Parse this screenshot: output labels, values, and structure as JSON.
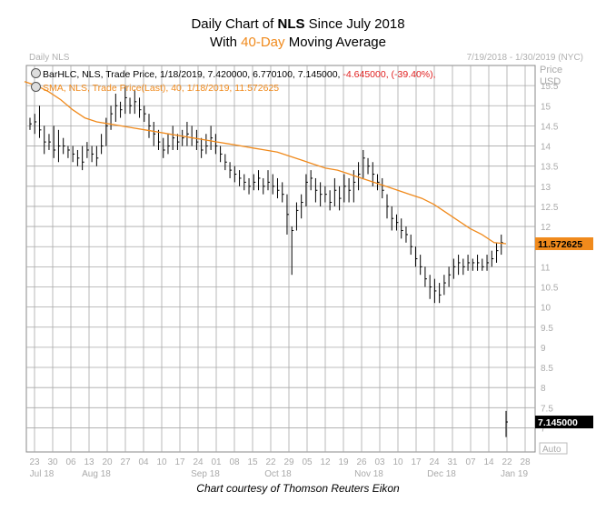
{
  "title": {
    "line1_prefix": "Daily Chart of ",
    "line1_ticker": "NLS",
    "line1_suffix": " Since July 2018",
    "line2_prefix": "With ",
    "line2_highlight": "40-Day",
    "line2_suffix": " Moving Average"
  },
  "chart_label": "Daily NLS",
  "date_range": "7/19/2018 - 1/30/2019 (NYC)",
  "legend": {
    "bar_text": "BarHLC, NLS, Trade Price, 1/18/2019, 7.420000, 6.770100, 7.145000,",
    "bar_change": "-4.645000, (-39.40%),",
    "sma_text": "SMA, NLS, Trade Price(Last), 40, 1/18/2019, 11.572625"
  },
  "credit": "Chart courtesy of Thomson Reuters Eikon",
  "colors": {
    "price_bars": "#000000",
    "sma": "#f08a1c",
    "grid": "#a8a8a8",
    "change_negative": "#e02020"
  },
  "chart_data": {
    "type": "line",
    "series": [
      {
        "name": "BarHLC, NLS, Trade Price"
      },
      {
        "name": "SMA, NLS, Trade Price(Last), 40"
      }
    ],
    "yaxis": {
      "label": "Price",
      "unit": "USD",
      "ylim": [
        6.4,
        16.0
      ],
      "ticks": [
        "7",
        "7.5",
        "8",
        "8.5",
        "9",
        "9.5",
        "10",
        "10.5",
        "11",
        "11.5",
        "12",
        "12.5",
        "13",
        "13.5",
        "14",
        "14.5",
        "15",
        "15.5"
      ],
      "last_price_label": "7.145000",
      "sma_label": "11.572625",
      "auto_label": "Auto"
    },
    "xaxis": {
      "day_ticks": [
        "23",
        "30",
        "06",
        "13",
        "20",
        "27",
        "04",
        "10",
        "17",
        "24",
        "01",
        "08",
        "15",
        "22",
        "29",
        "05",
        "12",
        "19",
        "26",
        "03",
        "10",
        "17",
        "24",
        "31",
        "07",
        "14",
        "22",
        "28"
      ],
      "month_labels": [
        "Jul 18",
        "Aug 18",
        "Sep 18",
        "Oct 18",
        "Nov 18",
        "Dec 18",
        "Jan 19"
      ]
    },
    "hlc_bars": [
      [
        14.7,
        14.4,
        14.55
      ],
      [
        14.8,
        14.3,
        14.6
      ],
      [
        15.0,
        14.2,
        14.4
      ],
      [
        14.5,
        13.8,
        14.1
      ],
      [
        14.3,
        13.9,
        14.1
      ],
      [
        14.5,
        13.7,
        13.9
      ],
      [
        14.4,
        13.6,
        14.0
      ],
      [
        14.2,
        13.8,
        14.0
      ],
      [
        14.0,
        13.7,
        13.9
      ],
      [
        14.0,
        13.6,
        13.8
      ],
      [
        13.9,
        13.5,
        13.7
      ],
      [
        14.0,
        13.4,
        13.6
      ],
      [
        14.1,
        13.7,
        13.9
      ],
      [
        14.0,
        13.6,
        13.8
      ],
      [
        14.0,
        13.5,
        13.7
      ],
      [
        14.3,
        13.8,
        14.0
      ],
      [
        14.7,
        14.0,
        14.5
      ],
      [
        15.0,
        14.4,
        14.8
      ],
      [
        15.3,
        14.6,
        15.0
      ],
      [
        15.1,
        14.7,
        14.9
      ],
      [
        15.5,
        14.8,
        15.2
      ],
      [
        15.2,
        14.8,
        15.0
      ],
      [
        15.4,
        14.8,
        15.1
      ],
      [
        15.2,
        14.7,
        14.9
      ],
      [
        15.0,
        14.6,
        14.8
      ],
      [
        14.8,
        14.2,
        14.5
      ],
      [
        14.6,
        14.0,
        14.3
      ],
      [
        14.4,
        13.9,
        14.1
      ],
      [
        14.2,
        13.7,
        13.9
      ],
      [
        14.3,
        13.8,
        14.0
      ],
      [
        14.5,
        13.9,
        14.2
      ],
      [
        14.3,
        13.9,
        14.1
      ],
      [
        14.4,
        14.0,
        14.2
      ],
      [
        14.6,
        14.0,
        14.3
      ],
      [
        14.5,
        14.0,
        14.2
      ],
      [
        14.4,
        13.9,
        14.1
      ],
      [
        14.2,
        13.7,
        13.9
      ],
      [
        14.3,
        13.8,
        14.0
      ],
      [
        14.5,
        13.9,
        14.2
      ],
      [
        14.3,
        13.8,
        14.0
      ],
      [
        14.0,
        13.6,
        13.8
      ],
      [
        13.8,
        13.4,
        13.6
      ],
      [
        13.6,
        13.2,
        13.4
      ],
      [
        13.5,
        13.1,
        13.3
      ],
      [
        13.4,
        13.0,
        13.2
      ],
      [
        13.3,
        12.9,
        13.1
      ],
      [
        13.2,
        12.8,
        13.0
      ],
      [
        13.3,
        12.9,
        13.1
      ],
      [
        13.4,
        12.9,
        13.2
      ],
      [
        13.2,
        12.8,
        13.0
      ],
      [
        13.4,
        12.9,
        13.1
      ],
      [
        13.3,
        12.8,
        13.0
      ],
      [
        13.2,
        12.7,
        12.9
      ],
      [
        13.1,
        12.6,
        12.8
      ],
      [
        12.8,
        11.8,
        12.3
      ],
      [
        12.0,
        10.8,
        11.9
      ],
      [
        12.6,
        11.9,
        12.4
      ],
      [
        12.8,
        12.2,
        12.6
      ],
      [
        13.3,
        12.5,
        13.1
      ],
      [
        13.4,
        12.9,
        13.2
      ],
      [
        13.2,
        12.6,
        12.9
      ],
      [
        13.1,
        12.5,
        12.8
      ],
      [
        13.0,
        12.6,
        12.8
      ],
      [
        12.9,
        12.4,
        12.6
      ],
      [
        13.2,
        12.5,
        12.9
      ],
      [
        13.0,
        12.4,
        12.7
      ],
      [
        13.3,
        12.6,
        13.0
      ],
      [
        13.2,
        12.6,
        12.9
      ],
      [
        13.4,
        12.6,
        13.1
      ],
      [
        13.6,
        12.9,
        13.3
      ],
      [
        13.9,
        13.2,
        13.7
      ],
      [
        13.7,
        13.3,
        13.5
      ],
      [
        13.6,
        13.0,
        13.3
      ],
      [
        13.3,
        12.9,
        13.1
      ],
      [
        13.2,
        12.7,
        12.9
      ],
      [
        12.8,
        12.2,
        12.5
      ],
      [
        12.5,
        11.9,
        12.2
      ],
      [
        12.3,
        11.9,
        12.1
      ],
      [
        12.2,
        11.7,
        11.9
      ],
      [
        12.0,
        11.6,
        11.8
      ],
      [
        11.8,
        11.3,
        11.5
      ],
      [
        11.5,
        11.0,
        11.2
      ],
      [
        11.3,
        10.8,
        11.0
      ],
      [
        11.0,
        10.5,
        10.7
      ],
      [
        10.8,
        10.2,
        10.5
      ],
      [
        10.7,
        10.1,
        10.4
      ],
      [
        10.6,
        10.1,
        10.3
      ],
      [
        10.8,
        10.3,
        10.6
      ],
      [
        11.0,
        10.5,
        10.8
      ],
      [
        11.2,
        10.7,
        11.0
      ],
      [
        11.3,
        10.8,
        11.1
      ],
      [
        11.2,
        10.8,
        11.0
      ],
      [
        11.3,
        10.9,
        11.1
      ],
      [
        11.2,
        10.9,
        11.1
      ],
      [
        11.3,
        10.9,
        11.1
      ],
      [
        11.2,
        10.9,
        11.0
      ],
      [
        11.3,
        10.9,
        11.1
      ],
      [
        11.4,
        11.0,
        11.2
      ],
      [
        11.6,
        11.1,
        11.4
      ],
      [
        11.8,
        11.3,
        11.6
      ],
      [
        7.42,
        6.7701,
        7.145
      ]
    ],
    "sma_points": [
      [
        15.6,
        0
      ],
      [
        15.5,
        2
      ],
      [
        15.35,
        4
      ],
      [
        15.15,
        6
      ],
      [
        14.9,
        8
      ],
      [
        14.7,
        10
      ],
      [
        14.6,
        12
      ],
      [
        14.55,
        14
      ],
      [
        14.5,
        16
      ],
      [
        14.45,
        18
      ],
      [
        14.4,
        20
      ],
      [
        14.35,
        22
      ],
      [
        14.3,
        24
      ],
      [
        14.25,
        26
      ],
      [
        14.2,
        28
      ],
      [
        14.15,
        30
      ],
      [
        14.1,
        32
      ],
      [
        14.05,
        34
      ],
      [
        14.0,
        36
      ],
      [
        13.95,
        38
      ],
      [
        13.9,
        40
      ],
      [
        13.85,
        42
      ],
      [
        13.75,
        44
      ],
      [
        13.65,
        46
      ],
      [
        13.55,
        48
      ],
      [
        13.45,
        50
      ],
      [
        13.4,
        52
      ],
      [
        13.3,
        54
      ],
      [
        13.2,
        56
      ],
      [
        13.1,
        58
      ],
      [
        13.0,
        60
      ],
      [
        12.9,
        62
      ],
      [
        12.8,
        64
      ],
      [
        12.7,
        66
      ],
      [
        12.55,
        68
      ],
      [
        12.35,
        70
      ],
      [
        12.15,
        72
      ],
      [
        11.95,
        74
      ],
      [
        11.8,
        76
      ],
      [
        11.6,
        78
      ]
    ]
  }
}
